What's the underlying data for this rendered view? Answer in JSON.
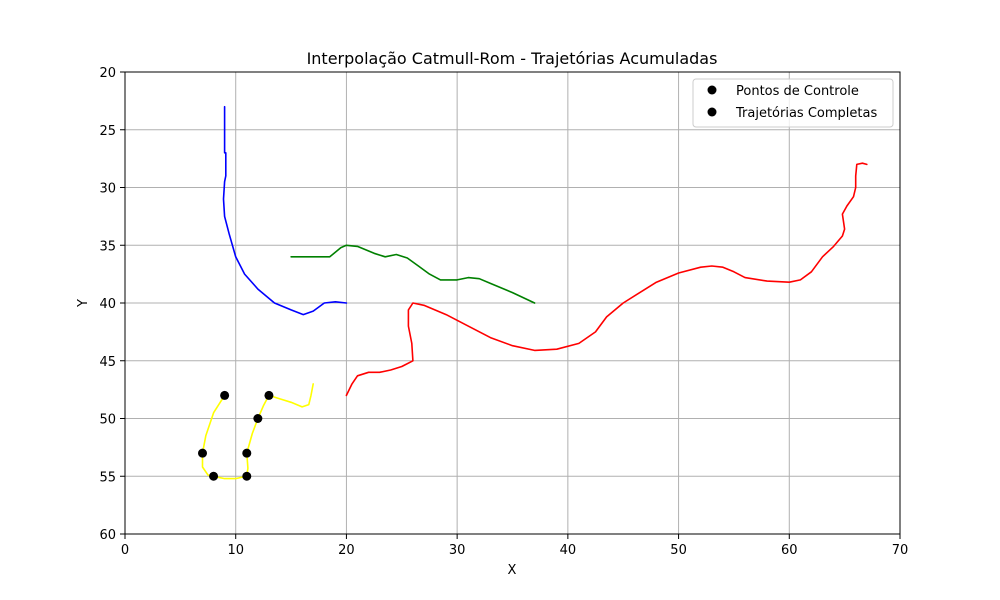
{
  "chart_data": {
    "type": "line",
    "title": "Interpolação Catmull-Rom - Trajetórias Acumuladas",
    "xlabel": "X",
    "ylabel": "Y",
    "xlim": [
      0,
      70
    ],
    "ylim": [
      20,
      60
    ],
    "y_inverted": true,
    "x_ticks": [
      "0",
      "10",
      "20",
      "30",
      "40",
      "50",
      "60",
      "70"
    ],
    "y_ticks": [
      "20",
      "25",
      "30",
      "35",
      "40",
      "45",
      "50",
      "55",
      "60"
    ],
    "grid": true,
    "legend_position": "top-right",
    "legend": [
      "Pontos de Controle",
      "Trajetórias Completas"
    ],
    "colors": {
      "blue": "#0000ff",
      "green": "#008000",
      "red": "#ff0000",
      "yellow": "#ffff00",
      "marker": "#000000"
    },
    "series": [
      {
        "color": "blue",
        "points": [
          [
            9,
            23
          ],
          [
            9,
            27
          ],
          [
            9.1,
            27
          ],
          [
            9.1,
            29
          ],
          [
            9,
            29.5
          ],
          [
            8.9,
            31
          ],
          [
            9,
            32.5
          ],
          [
            9.4,
            34
          ],
          [
            10,
            36
          ],
          [
            10.8,
            37.5
          ],
          [
            12,
            38.8
          ],
          [
            13.5,
            40
          ],
          [
            15,
            40.6
          ],
          [
            16.1,
            41
          ],
          [
            17,
            40.7
          ],
          [
            18,
            40
          ],
          [
            19,
            39.9
          ],
          [
            20,
            40
          ]
        ]
      },
      {
        "color": "green",
        "points": [
          [
            15,
            36
          ],
          [
            17,
            36
          ],
          [
            18.5,
            36
          ],
          [
            19.5,
            35.2
          ],
          [
            20,
            35
          ],
          [
            21,
            35.1
          ],
          [
            22.5,
            35.7
          ],
          [
            23.5,
            36
          ],
          [
            24.5,
            35.8
          ],
          [
            25.5,
            36.1
          ],
          [
            26.5,
            36.8
          ],
          [
            27.5,
            37.5
          ],
          [
            28.5,
            38
          ],
          [
            29.5,
            38
          ],
          [
            30,
            38
          ],
          [
            31,
            37.8
          ],
          [
            32,
            37.9
          ],
          [
            33,
            38.3
          ],
          [
            35,
            39.1
          ],
          [
            37,
            40
          ]
        ]
      },
      {
        "color": "red",
        "points": [
          [
            20,
            48
          ],
          [
            20.5,
            47
          ],
          [
            21,
            46.3
          ],
          [
            22,
            46
          ],
          [
            23,
            46
          ],
          [
            24,
            45.8
          ],
          [
            25,
            45.5
          ],
          [
            26,
            45
          ],
          [
            25.9,
            43.5
          ],
          [
            25.6,
            42
          ],
          [
            25.6,
            40.6
          ],
          [
            26,
            40
          ],
          [
            27,
            40.2
          ],
          [
            29,
            41
          ],
          [
            31,
            42
          ],
          [
            33,
            43
          ],
          [
            35,
            43.7
          ],
          [
            37,
            44.1
          ],
          [
            39,
            44
          ],
          [
            41,
            43.5
          ],
          [
            42.5,
            42.5
          ],
          [
            43.5,
            41.2
          ],
          [
            45,
            40
          ],
          [
            47,
            38.8
          ],
          [
            48,
            38.2
          ],
          [
            50,
            37.4
          ],
          [
            52,
            36.9
          ],
          [
            53,
            36.8
          ],
          [
            54,
            36.9
          ],
          [
            55,
            37.3
          ],
          [
            56,
            37.8
          ],
          [
            58,
            38.1
          ],
          [
            60,
            38.2
          ],
          [
            61,
            38
          ],
          [
            62,
            37.3
          ],
          [
            63,
            36
          ],
          [
            64,
            35.1
          ],
          [
            64.8,
            34.2
          ],
          [
            65,
            33.6
          ],
          [
            64.8,
            32.3
          ],
          [
            65.2,
            31.6
          ],
          [
            65.8,
            30.8
          ],
          [
            66,
            30
          ],
          [
            66,
            29
          ],
          [
            66.1,
            28
          ],
          [
            66.6,
            27.9
          ],
          [
            67,
            28
          ]
        ]
      },
      {
        "color": "yellow",
        "points": [
          [
            9,
            48
          ],
          [
            8,
            49.5
          ],
          [
            7.3,
            51.5
          ],
          [
            7,
            53
          ],
          [
            7,
            54.2
          ],
          [
            7.5,
            54.9
          ],
          [
            8,
            55
          ],
          [
            9,
            55.2
          ],
          [
            10,
            55.2
          ],
          [
            10.5,
            55.1
          ],
          [
            11,
            55
          ],
          [
            11.1,
            54.3
          ],
          [
            11,
            53
          ],
          [
            11.5,
            51.3
          ],
          [
            12,
            50
          ],
          [
            12.5,
            48.9
          ],
          [
            13,
            48
          ],
          [
            14,
            48.3
          ],
          [
            15,
            48.6
          ],
          [
            16,
            49
          ],
          [
            16.6,
            48.8
          ],
          [
            16.8,
            48
          ],
          [
            17,
            47
          ]
        ]
      }
    ],
    "control_points": [
      [
        9,
        48
      ],
      [
        7,
        53
      ],
      [
        8,
        55
      ],
      [
        11,
        55
      ],
      [
        11,
        53
      ],
      [
        12,
        50
      ],
      [
        13,
        48
      ]
    ]
  }
}
